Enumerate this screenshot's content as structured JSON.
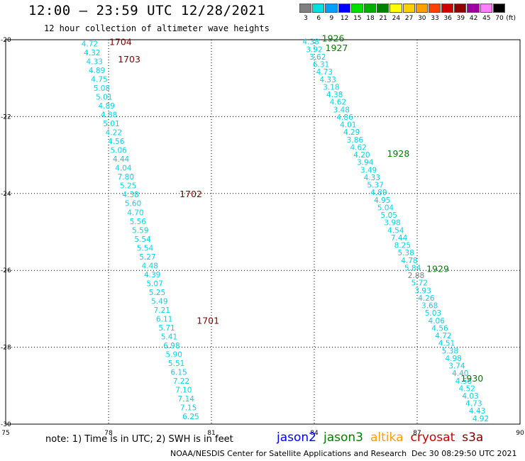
{
  "header": {
    "title": "12:00 – 23:59 UTC 12/28/2021",
    "subtitle": "12 hour collection of altimeter wave heights"
  },
  "color_scale": {
    "unit": "(ft)",
    "bins": [
      {
        "label": "3",
        "color": "#808080"
      },
      {
        "label": "6",
        "color": "#00e0e0"
      },
      {
        "label": "9",
        "color": "#00a0ff"
      },
      {
        "label": "12",
        "color": "#0000ff"
      },
      {
        "label": "15",
        "color": "#00e000"
      },
      {
        "label": "18",
        "color": "#00b000"
      },
      {
        "label": "21",
        "color": "#008000"
      },
      {
        "label": "24",
        "color": "#ffff00"
      },
      {
        "label": "27",
        "color": "#ffd000"
      },
      {
        "label": "30",
        "color": "#ffa000"
      },
      {
        "label": "33",
        "color": "#ff4000"
      },
      {
        "label": "36",
        "color": "#d00000"
      },
      {
        "label": "39",
        "color": "#900000"
      },
      {
        "label": "42",
        "color": "#a000a0"
      },
      {
        "label": "45",
        "color": "#ff80ff"
      },
      {
        "label": "70",
        "color": "#000000"
      }
    ]
  },
  "map": {
    "lon_range": [
      75,
      90
    ],
    "lat_range": [
      -30,
      -20
    ],
    "x_ticks": [
      "75",
      "78",
      "81",
      "84",
      "87",
      "90"
    ],
    "y_ticks": [
      "-20",
      "-22",
      "-24",
      "-26",
      "-28",
      "-30"
    ],
    "grid": "dotted"
  },
  "chart_data": {
    "type": "scatter",
    "tracks": [
      {
        "name": "left_pass",
        "start": [
          77.45,
          -20.1
        ],
        "end": [
          80.4,
          -29.8
        ],
        "values": [
          "4.72",
          "4.32",
          "4.33",
          "4.89",
          "4.75",
          "5.08",
          "5.01",
          "4.89",
          "4.88",
          "5.01",
          "4.22",
          "4.56",
          "5.06",
          "4.44",
          "4.04",
          "7.80",
          "5.25",
          "4.38",
          "5.60",
          "4.70",
          "5.56",
          "5.59",
          "5.54",
          "5.54",
          "5.27",
          "4.48",
          "4.39",
          "5.07",
          "5.25",
          "5.49",
          "7.21",
          "6.11",
          "5.71",
          "5.41",
          "6.98",
          "5.90",
          "5.51",
          "6.15",
          "7.22",
          "7.10",
          "7.14",
          "7.15",
          "6.25"
        ]
      },
      {
        "name": "right_pass",
        "start": [
          83.9,
          -20.05
        ],
        "end": [
          88.85,
          -29.85
        ],
        "values": [
          "4.38",
          "3.92",
          "3.62",
          "6.31",
          "4.73",
          "4.33",
          "3.18",
          "4.38",
          "4.62",
          "3.48",
          "4.86",
          "4.01",
          "4.29",
          "3.86",
          "4.62",
          "4.20",
          "3.94",
          "3.49",
          "4.33",
          "5.37",
          "4.89",
          "4.95",
          "5.04",
          "5.05",
          "3.98",
          "4.54",
          "7.44",
          "8.25",
          "5.38",
          "4.78",
          "5.84",
          "2.88",
          "5.72",
          "3.93",
          "4.26",
          "3.68",
          "5.03",
          "4.06",
          "4.56",
          "4.72",
          "4.51",
          "5.38",
          "4.98",
          "3.74",
          "4.40",
          "4.58",
          "4.52",
          "4.03",
          "4.73",
          "4.43",
          "4.92"
        ]
      }
    ],
    "time_labels": [
      {
        "text": "1704",
        "lon": 78.35,
        "lat": -20.05,
        "satellite": "cryosat"
      },
      {
        "text": "1703",
        "lon": 78.6,
        "lat": -20.5,
        "satellite": "cryosat"
      },
      {
        "text": "1702",
        "lon": 80.4,
        "lat": -24.0,
        "satellite": "cryosat"
      },
      {
        "text": "1701",
        "lon": 80.9,
        "lat": -27.3,
        "satellite": "cryosat"
      },
      {
        "text": "1926",
        "lon": 84.55,
        "lat": -19.95,
        "satellite": "jason3"
      },
      {
        "text": "1927",
        "lon": 84.65,
        "lat": -20.2,
        "satellite": "jason3"
      },
      {
        "text": "1928",
        "lon": 86.45,
        "lat": -22.95,
        "satellite": "jason3"
      },
      {
        "text": "1929",
        "lon": 87.6,
        "lat": -25.95,
        "satellite": "jason3"
      },
      {
        "text": "1930",
        "lon": 88.6,
        "lat": -28.8,
        "satellite": "jason3"
      }
    ]
  },
  "footer": {
    "note": "note: 1) Time is in UTC; 2) SWH is in feet",
    "satellites": [
      {
        "name": "jason2",
        "color": "#0000ff"
      },
      {
        "name": "jason3",
        "color": "#008000"
      },
      {
        "name": "altika",
        "color": "#ffa000"
      },
      {
        "name": "cryosat",
        "color": "#cc0000"
      },
      {
        "name": "s3a",
        "color": "#800000"
      }
    ],
    "credit": "NOAA/NESDIS Center for Satellite Applications and Research",
    "timestamp": "Dec 30 08:29:50 UTC 2021"
  }
}
